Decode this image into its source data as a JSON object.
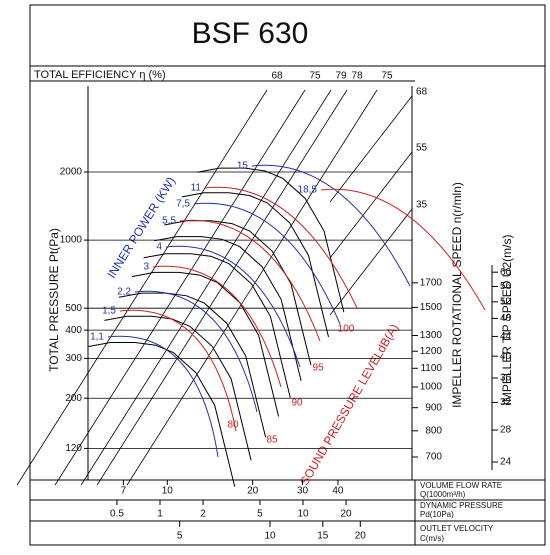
{
  "chart_data": {
    "type": "fan-performance",
    "title": "BSF 630",
    "efficiency_label": "TOTAL EFFICIENCY η (%)",
    "efficiency_ticks": [
      68,
      75,
      79,
      78,
      75
    ],
    "ylabel": "TOTAL PRESSURE Pt(Pa)",
    "yscale": "log",
    "ylim": [
      87,
      4800
    ],
    "yticks": [
      120,
      200,
      300,
      400,
      500,
      1000,
      2000
    ],
    "speed_label": "IMPELLER ROTATIONAL SPEED n(r/mln)",
    "speed_ticks": [
      700,
      800,
      900,
      1000,
      1100,
      1200,
      1300,
      1500,
      1700
    ],
    "upper_ticks": [
      68,
      55,
      35
    ],
    "tip_speed_label": "IMPELLER TIP SPEED U2(m/s)",
    "tip_speed_ticks": [
      24,
      28,
      32,
      36,
      40,
      44,
      48,
      52,
      56,
      60
    ],
    "power_label": "INNER POWER (KW)",
    "power_values": [
      {
        "value": 1.1,
        "label": "1,1"
      },
      {
        "value": 1.5,
        "label": "1,5"
      },
      {
        "value": 2.2,
        "label": "2,2"
      },
      3,
      4,
      {
        "value": 5.5,
        "label": "5,5"
      },
      {
        "value": 7.5,
        "label": "7,5"
      },
      11,
      15,
      {
        "value": 18.5,
        "label": "18,5"
      }
    ],
    "sound_label": "SOUND PRESSURE LEVELdB(A)",
    "sound_values": [
      80,
      85,
      90,
      95,
      100
    ],
    "flow_label": [
      "VOLUME FLOW RATE",
      "Q(1000m³/h)"
    ],
    "xlim": [
      5.25,
      73
    ],
    "xscale": "log",
    "xticks": [
      7,
      10,
      20,
      30,
      40
    ],
    "dynamic_label": [
      "DYNAMIC PRESSURE",
      "Pd(10Pa)"
    ],
    "dynamic_ticks": [
      0.5,
      1,
      2,
      5,
      10,
      20
    ],
    "velocity_label": [
      "OUTLET VELOCITY",
      "C(m/s)"
    ],
    "velocity_ticks": [
      5,
      10,
      15,
      20
    ]
  }
}
